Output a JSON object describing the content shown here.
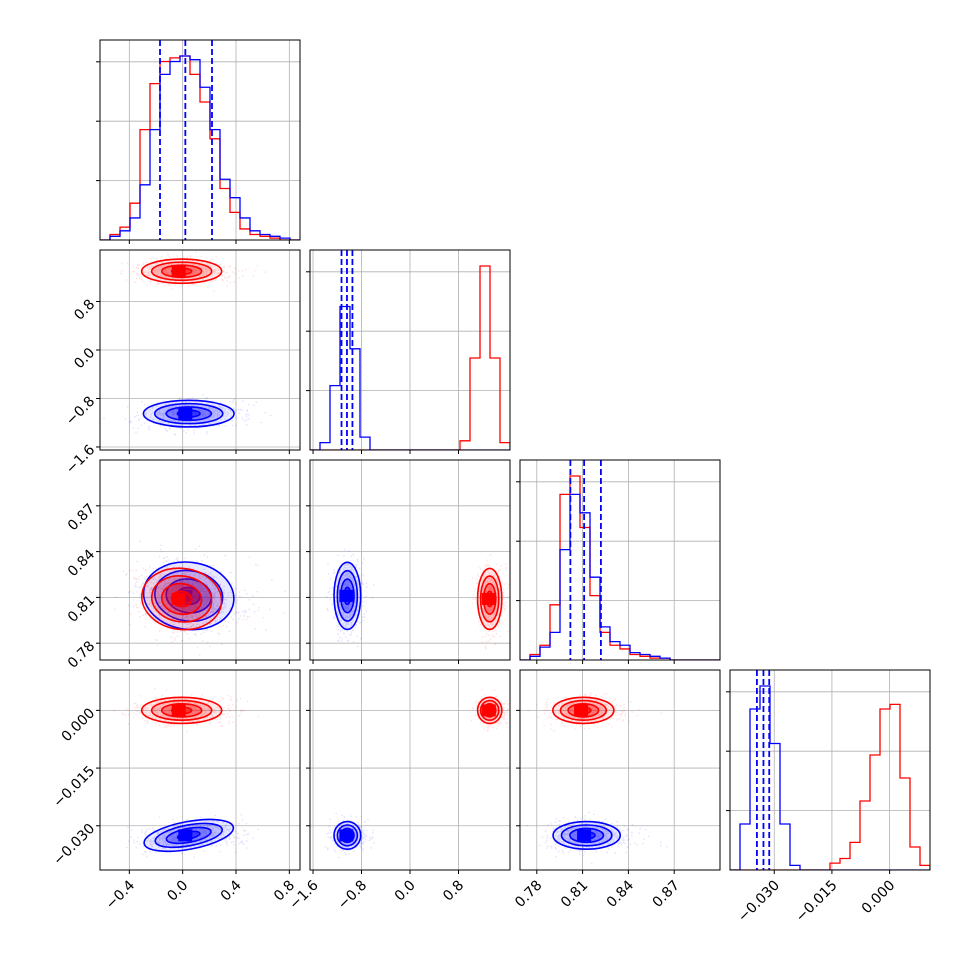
{
  "colors": {
    "red": "#ff0000",
    "blue": "#0000ff",
    "grid": "#b0b0b0",
    "frame": "#000000"
  },
  "chart_data": {
    "type": "corner",
    "title": "",
    "n_params": 4,
    "grid": true,
    "ranges": [
      [
        -0.62,
        0.88
      ],
      [
        -1.65,
        1.65
      ],
      [
        0.769,
        0.9
      ],
      [
        -0.0415,
        0.0105
      ]
    ],
    "ticks": [
      [
        "−0.4",
        "0.0",
        "0.4",
        "0.8"
      ],
      [
        "−1.6",
        "−0.8",
        "0.0",
        "0.8"
      ],
      [
        "0.78",
        "0.81",
        "0.84",
        "0.87"
      ],
      [
        "−0.030",
        "−0.015",
        "0.000"
      ]
    ],
    "tick_values": [
      [
        -0.4,
        0.0,
        0.4,
        0.8
      ],
      [
        -1.6,
        -0.8,
        0.0,
        0.8
      ],
      [
        0.78,
        0.81,
        0.84,
        0.87
      ],
      [
        -0.03,
        -0.015,
        0.0
      ]
    ],
    "series": [
      {
        "color": "#0000ff",
        "mean": [
          0.02,
          -1.05,
          0.811,
          -0.0325
        ],
        "sd": [
          0.17,
          0.11,
          0.011,
          0.0018
        ],
        "quantiles": [
          [
            -0.17,
            0.02,
            0.22
          ],
          [
            -1.13,
            -1.04,
            -0.95
          ],
          [
            0.802,
            0.811,
            0.822
          ],
          [
            -0.0345,
            -0.0328,
            -0.0313
          ]
        ]
      },
      {
        "color": "#ff0000",
        "mean": [
          -0.03,
          1.3,
          0.809,
          0.0
        ],
        "sd": [
          0.15,
          0.1,
          0.01,
          0.0017
        ],
        "quantiles": []
      }
    ],
    "histograms": [
      {
        "bin_edges": [
          -0.62,
          -0.545,
          -0.47,
          -0.395,
          -0.32,
          -0.245,
          -0.17,
          -0.095,
          -0.02,
          0.055,
          0.13,
          0.205,
          0.28,
          0.355,
          0.43,
          0.505,
          0.58,
          0.655,
          0.73,
          0.805,
          0.88
        ],
        "blue": [
          0.0,
          0.02,
          0.05,
          0.12,
          0.3,
          0.6,
          0.9,
          0.97,
          1.0,
          0.98,
          0.83,
          0.6,
          0.33,
          0.23,
          0.12,
          0.05,
          0.03,
          0.02,
          0.01,
          0.0
        ],
        "red": [
          0.0,
          0.03,
          0.07,
          0.2,
          0.6,
          0.85,
          0.97,
          0.99,
          1.0,
          0.9,
          0.75,
          0.55,
          0.28,
          0.15,
          0.06,
          0.03,
          0.02,
          0.01,
          0.0,
          0.0
        ]
      },
      {
        "bin_edges": [
          -1.65,
          -1.485,
          -1.32,
          -1.155,
          -0.99,
          -0.825,
          -0.66,
          -0.495,
          -0.33,
          -0.165,
          0.0,
          0.165,
          0.33,
          0.495,
          0.66,
          0.825,
          0.99,
          1.155,
          1.32,
          1.485,
          1.65
        ],
        "blue": [
          0.0,
          0.04,
          0.35,
          0.78,
          0.55,
          0.07,
          0.0,
          0.0,
          0.0,
          0.0,
          0.0,
          0.0,
          0.0,
          0.0,
          0.0,
          0.0,
          0.0,
          0.0,
          0.0,
          0.0
        ],
        "red": [
          0.0,
          0.0,
          0.0,
          0.0,
          0.0,
          0.0,
          0.0,
          0.0,
          0.0,
          0.0,
          0.0,
          0.0,
          0.0,
          0.0,
          0.0,
          0.05,
          0.5,
          1.0,
          0.5,
          0.04
        ]
      },
      {
        "bin_edges": [
          0.769,
          0.775,
          0.782,
          0.788,
          0.795,
          0.801,
          0.808,
          0.814,
          0.821,
          0.828,
          0.834,
          0.841,
          0.847,
          0.854,
          0.86,
          0.867,
          0.873,
          0.88,
          0.887,
          0.893,
          0.9
        ],
        "blue": [
          0.0,
          0.02,
          0.07,
          0.15,
          0.6,
          0.9,
          0.8,
          0.45,
          0.18,
          0.1,
          0.08,
          0.04,
          0.03,
          0.02,
          0.01,
          0.0,
          0.0,
          0.0,
          0.0,
          0.0
        ],
        "red": [
          0.0,
          0.03,
          0.08,
          0.3,
          0.9,
          1.0,
          0.72,
          0.35,
          0.15,
          0.08,
          0.06,
          0.03,
          0.02,
          0.01,
          0.01,
          0.0,
          0.0,
          0.0,
          0.0,
          0.0
        ]
      },
      {
        "bin_edges": [
          -0.0415,
          -0.0389,
          -0.0363,
          -0.0337,
          -0.0311,
          -0.0285,
          -0.0259,
          -0.0233,
          -0.0207,
          -0.0181,
          -0.0155,
          -0.0129,
          -0.0103,
          -0.0077,
          -0.0051,
          -0.0025,
          0.0001,
          0.0027,
          0.0053,
          0.0079,
          0.0105
        ],
        "blue": [
          0.0,
          0.2,
          0.7,
          0.8,
          0.55,
          0.2,
          0.02,
          0.0,
          0.0,
          0.0,
          0.0,
          0.0,
          0.0,
          0.0,
          0.0,
          0.0,
          0.0,
          0.0,
          0.0,
          0.0
        ],
        "red": [
          0.0,
          0.0,
          0.0,
          0.0,
          0.0,
          0.0,
          0.0,
          0.0,
          0.0,
          0.0,
          0.03,
          0.05,
          0.12,
          0.3,
          0.5,
          0.7,
          0.72,
          0.4,
          0.1,
          0.02
        ]
      }
    ]
  }
}
